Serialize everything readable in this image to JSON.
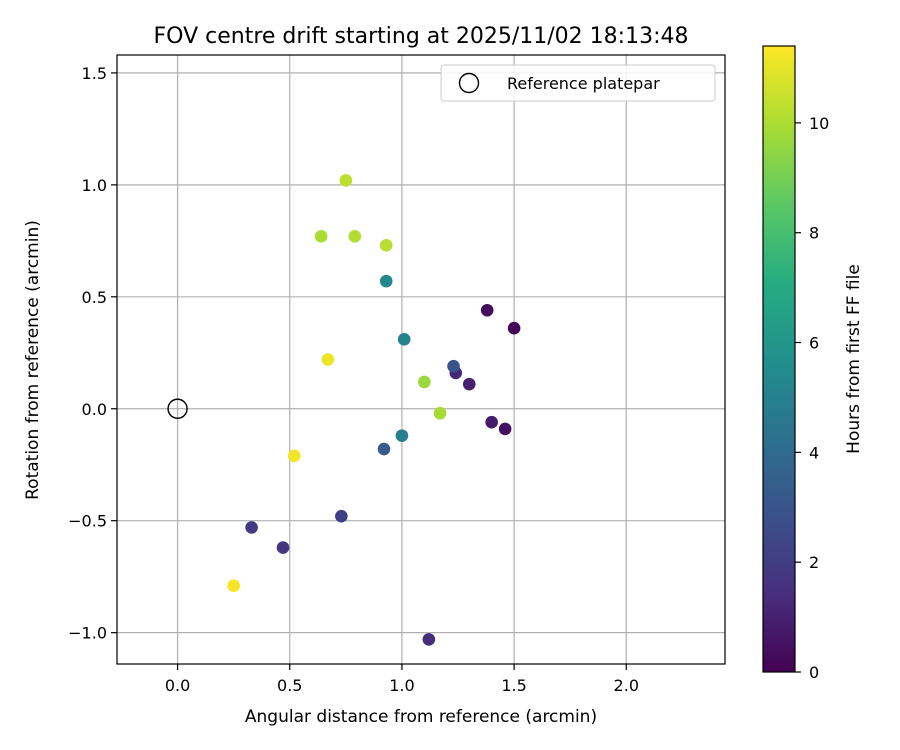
{
  "chart_data": {
    "type": "scatter",
    "title": "FOV centre drift starting at 2025/11/02 18:13:48",
    "xlabel": "Angular distance from reference (arcmin)",
    "ylabel": "Rotation from reference (arcmin)",
    "xlim": [
      -0.27,
      2.44
    ],
    "ylim": [
      -1.14,
      1.58
    ],
    "xticks": [
      0.0,
      0.5,
      1.0,
      1.5,
      2.0
    ],
    "xtick_labels": [
      "0.0",
      "0.5",
      "1.0",
      "1.5",
      "2.0"
    ],
    "yticks": [
      -1.0,
      -0.5,
      0.0,
      0.5,
      1.0,
      1.5
    ],
    "ytick_labels": [
      "−1.0",
      "−0.5",
      "0.0",
      "0.5",
      "1.0",
      "1.5"
    ],
    "grid": true,
    "legend": {
      "location": "top-right",
      "entries": [
        "Reference platepar"
      ]
    },
    "reference_point": {
      "x": 0.0,
      "y": 0.0,
      "label": "Reference platepar"
    },
    "colorbar": {
      "label": "Hours from first FF file",
      "colormap": "viridis",
      "range": [
        0,
        11.4
      ],
      "ticks": [
        0,
        2,
        4,
        6,
        8,
        10
      ],
      "tick_labels": [
        "0",
        "2",
        "4",
        "6",
        "8",
        "10"
      ]
    },
    "points": [
      {
        "x": 1.5,
        "y": 0.36,
        "hours": 0.1
      },
      {
        "x": 1.38,
        "y": 0.44,
        "hours": 0.3
      },
      {
        "x": 1.46,
        "y": -0.09,
        "hours": 0.5
      },
      {
        "x": 1.4,
        "y": -0.06,
        "hours": 0.8
      },
      {
        "x": 1.3,
        "y": 0.11,
        "hours": 1.0
      },
      {
        "x": 1.24,
        "y": 0.16,
        "hours": 1.2
      },
      {
        "x": 1.12,
        "y": -1.03,
        "hours": 1.4
      },
      {
        "x": 0.47,
        "y": -0.62,
        "hours": 1.7
      },
      {
        "x": 0.33,
        "y": -0.53,
        "hours": 1.9
      },
      {
        "x": 0.73,
        "y": -0.48,
        "hours": 2.1
      },
      {
        "x": 1.23,
        "y": 0.19,
        "hours": 3.0
      },
      {
        "x": 0.92,
        "y": -0.18,
        "hours": 3.3
      },
      {
        "x": 1.0,
        "y": -0.12,
        "hours": 4.9
      },
      {
        "x": 1.01,
        "y": 0.31,
        "hours": 5.1
      },
      {
        "x": 0.93,
        "y": 0.57,
        "hours": 5.3
      },
      {
        "x": 1.1,
        "y": 0.12,
        "hours": 9.7
      },
      {
        "x": 1.17,
        "y": -0.02,
        "hours": 9.9
      },
      {
        "x": 0.64,
        "y": 0.77,
        "hours": 10.0
      },
      {
        "x": 0.79,
        "y": 0.77,
        "hours": 10.1
      },
      {
        "x": 0.93,
        "y": 0.73,
        "hours": 10.2
      },
      {
        "x": 0.75,
        "y": 1.02,
        "hours": 10.3
      },
      {
        "x": 0.67,
        "y": 0.22,
        "hours": 11.1
      },
      {
        "x": 0.52,
        "y": -0.21,
        "hours": 11.2
      },
      {
        "x": 0.25,
        "y": -0.79,
        "hours": 11.3
      }
    ]
  }
}
